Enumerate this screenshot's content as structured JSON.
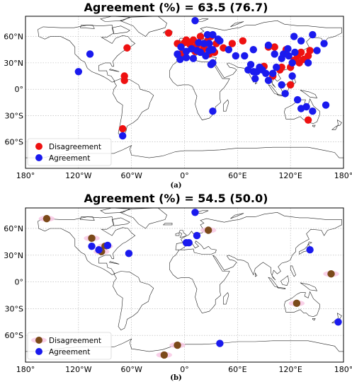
{
  "panels": [
    {
      "id": "a",
      "title": "Agreement (%) = 63.5 (76.7)",
      "sublabel": "(a)",
      "lon_ticks": [
        "180°",
        "120°W",
        "60°W",
        "0°",
        "60°E",
        "120°E",
        "180°"
      ],
      "lat_ticks": [
        "60°N",
        "30°N",
        "0°",
        "30°S",
        "60°S"
      ],
      "legend": {
        "disagreement": "Disagreement",
        "agreement": "Agreement",
        "placement": "lower-left"
      },
      "colors": {
        "disagreement": "#ee1111",
        "agreement": "#1a1aee"
      },
      "points": {
        "disagreement": [
          [
            -65,
            47
          ],
          [
            -68,
            15
          ],
          [
            -68,
            10
          ],
          [
            -70,
            -45
          ],
          [
            -18,
            64
          ],
          [
            -8,
            52
          ],
          [
            0,
            53
          ],
          [
            2,
            56
          ],
          [
            6,
            51
          ],
          [
            10,
            56
          ],
          [
            14,
            50
          ],
          [
            18,
            60
          ],
          [
            22,
            48
          ],
          [
            26,
            55
          ],
          [
            30,
            60
          ],
          [
            36,
            52
          ],
          [
            44,
            47
          ],
          [
            54,
            52
          ],
          [
            66,
            55
          ],
          [
            95,
            48
          ],
          [
            102,
            48
          ],
          [
            115,
            45
          ],
          [
            120,
            25
          ],
          [
            128,
            38
          ],
          [
            132,
            42
          ],
          [
            135,
            34
          ],
          [
            140,
            38
          ],
          [
            142,
            44
          ],
          [
            110,
            25
          ],
          [
            100,
            15
          ],
          [
            90,
            26
          ],
          [
            140,
            -35
          ],
          [
            120,
            5
          ],
          [
            108,
            22
          ],
          [
            -4,
            40
          ],
          [
            12,
            43
          ],
          [
            20,
            44
          ],
          [
            28,
            40
          ],
          [
            34,
            42
          ],
          [
            130,
            30
          ],
          [
            124,
            33
          ]
        ],
        "agreement": [
          [
            -107,
            40
          ],
          [
            -120,
            20
          ],
          [
            -70,
            -53
          ],
          [
            12,
            78
          ],
          [
            -4,
            48
          ],
          [
            -8,
            40
          ],
          [
            2,
            43
          ],
          [
            8,
            46
          ],
          [
            14,
            44
          ],
          [
            18,
            42
          ],
          [
            24,
            38
          ],
          [
            28,
            44
          ],
          [
            32,
            45
          ],
          [
            16,
            53
          ],
          [
            22,
            52
          ],
          [
            28,
            52
          ],
          [
            26,
            62
          ],
          [
            32,
            62
          ],
          [
            38,
            57
          ],
          [
            30,
            28
          ],
          [
            -5,
            34
          ],
          [
            2,
            36
          ],
          [
            10,
            35
          ],
          [
            32,
            30
          ],
          [
            40,
            55
          ],
          [
            50,
            45
          ],
          [
            58,
            38
          ],
          [
            75,
            28
          ],
          [
            78,
            20
          ],
          [
            72,
            22
          ],
          [
            80,
            12
          ],
          [
            82,
            20
          ],
          [
            85,
            25
          ],
          [
            88,
            22
          ],
          [
            92,
            18
          ],
          [
            95,
            10
          ],
          [
            100,
            18
          ],
          [
            104,
            25
          ],
          [
            110,
            35
          ],
          [
            112,
            40
          ],
          [
            118,
            38
          ],
          [
            125,
            42
          ],
          [
            132,
            55
          ],
          [
            145,
            62
          ],
          [
            158,
            52
          ],
          [
            150,
            44
          ],
          [
            140,
            30
          ],
          [
            122,
            30
          ],
          [
            110,
            5
          ],
          [
            122,
            15
          ],
          [
            128,
            -12
          ],
          [
            132,
            -22
          ],
          [
            145,
            -25
          ],
          [
            138,
            -20
          ],
          [
            160,
            -18
          ],
          [
            32,
            -25
          ],
          [
            95,
            50
          ],
          [
            78,
            45
          ],
          [
            68,
            38
          ],
          [
            102,
            40
          ],
          [
            114,
            -5
          ],
          [
            124,
            60
          ],
          [
            117,
            46
          ]
        ]
      }
    },
    {
      "id": "b",
      "title": "Agreement (%) = 54.5 (50.0)",
      "sublabel": "(b)",
      "lon_ticks": [
        "180°",
        "120°W",
        "60°W",
        "0°",
        "60°E",
        "120°E",
        "180°"
      ],
      "lat_ticks": [
        "60°N",
        "30°N",
        "0°",
        "30°S",
        "60°S"
      ],
      "legend": {
        "disagreement": "Disagreement",
        "agreement": "Agreement",
        "placement": "lower-left"
      },
      "colors": {
        "disagreement": "#7b4a1a",
        "agreement": "#1a1aee"
      },
      "points": {
        "disagreement": [
          [
            -156,
            71
          ],
          [
            -105,
            49
          ],
          [
            -90,
            40
          ],
          [
            -94,
            34
          ],
          [
            27,
            58
          ],
          [
            127,
            -24
          ],
          [
            166,
            9
          ],
          [
            -8,
            -71
          ],
          [
            -23,
            -82
          ]
        ],
        "agreement": [
          [
            -105,
            40
          ],
          [
            -97,
            36
          ],
          [
            -87,
            41
          ],
          [
            -63,
            32
          ],
          [
            12,
            78
          ],
          [
            14,
            52
          ],
          [
            5,
            44
          ],
          [
            2,
            44
          ],
          [
            142,
            36
          ],
          [
            174,
            -45
          ],
          [
            40,
            -69
          ]
        ]
      }
    }
  ]
}
